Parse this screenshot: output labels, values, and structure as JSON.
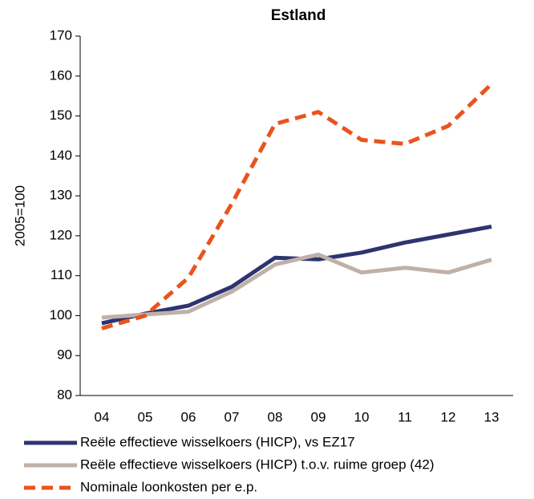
{
  "chart_data": {
    "type": "line",
    "title": "Estland",
    "y_label": "2005=100",
    "categories": [
      "04",
      "05",
      "06",
      "07",
      "08",
      "09",
      "10",
      "11",
      "12",
      "13"
    ],
    "series": [
      {
        "name": "Reële effectieve wisselkoers (HICP), vs EZ17",
        "color": "#2e3470",
        "style": "solid",
        "values": [
          98.1,
          100.5,
          102.5,
          107.2,
          114.5,
          114.1,
          115.8,
          118.3,
          120.3,
          122.3
        ]
      },
      {
        "name": "Reële effectieve wisselkoers (HICP) t.o.v. ruime groep (42)",
        "color": "#bfb1a8",
        "style": "solid",
        "values": [
          99.5,
          100.3,
          101.0,
          106.0,
          112.8,
          115.3,
          110.8,
          112.0,
          110.8,
          114.0
        ]
      },
      {
        "name": "Nominale loonkosten per e.p.",
        "color": "#e8541e",
        "style": "dashed",
        "values": [
          96.8,
          100.0,
          109.5,
          128.0,
          148.0,
          151.0,
          144.0,
          143.0,
          147.5,
          158.0
        ]
      }
    ],
    "ylim": [
      80,
      170
    ],
    "yticks": [
      80,
      90,
      100,
      110,
      120,
      130,
      140,
      150,
      160,
      170
    ],
    "grid": false
  }
}
